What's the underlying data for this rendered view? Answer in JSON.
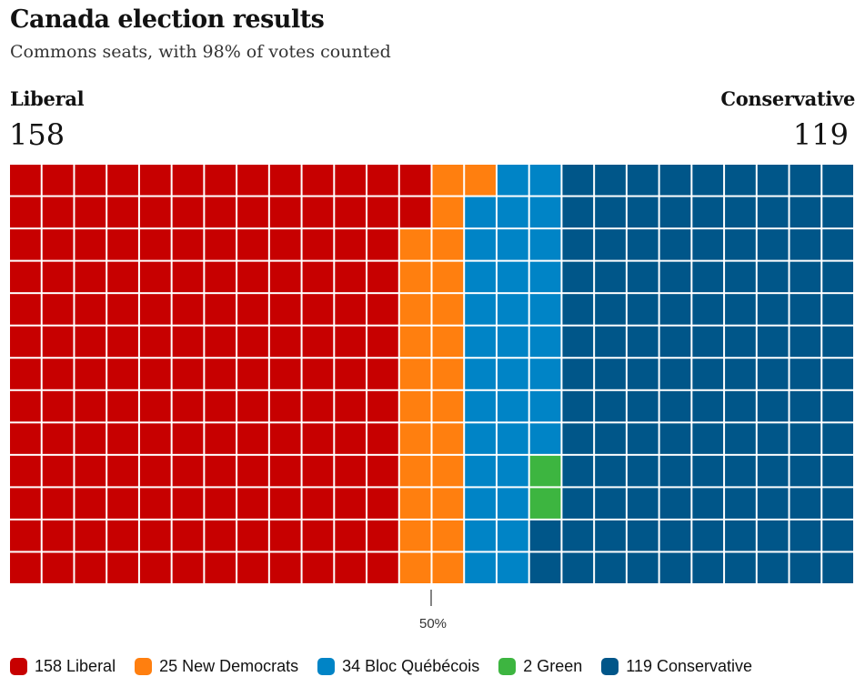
{
  "header": {
    "title": "Canada election results",
    "subtitle": "Commons seats, with 98% of votes counted"
  },
  "left_party": {
    "name": "Liberal",
    "seats": "158"
  },
  "right_party": {
    "name": "Conservative",
    "seats": "119"
  },
  "chart_data": {
    "type": "waffle",
    "title": "Canada election results",
    "subtitle": "Commons seats, with 98% of votes counted",
    "total_seats": 338,
    "majority_marker": "50%",
    "series": [
      {
        "name": "Liberal",
        "value": 158,
        "color": "#c70000",
        "legend": "158 Liberal"
      },
      {
        "name": "New Democrats",
        "value": 25,
        "color": "#ff7f0f",
        "legend": "25 New Democrats"
      },
      {
        "name": "Bloc Québécois",
        "value": 34,
        "color": "#0084c6",
        "legend": "34 Bloc Québécois"
      },
      {
        "name": "Green",
        "value": 2,
        "color": "#3db540",
        "legend": "2 Green"
      },
      {
        "name": "Conservative",
        "value": 119,
        "color": "#005689",
        "legend": "119 Conservative"
      }
    ]
  }
}
